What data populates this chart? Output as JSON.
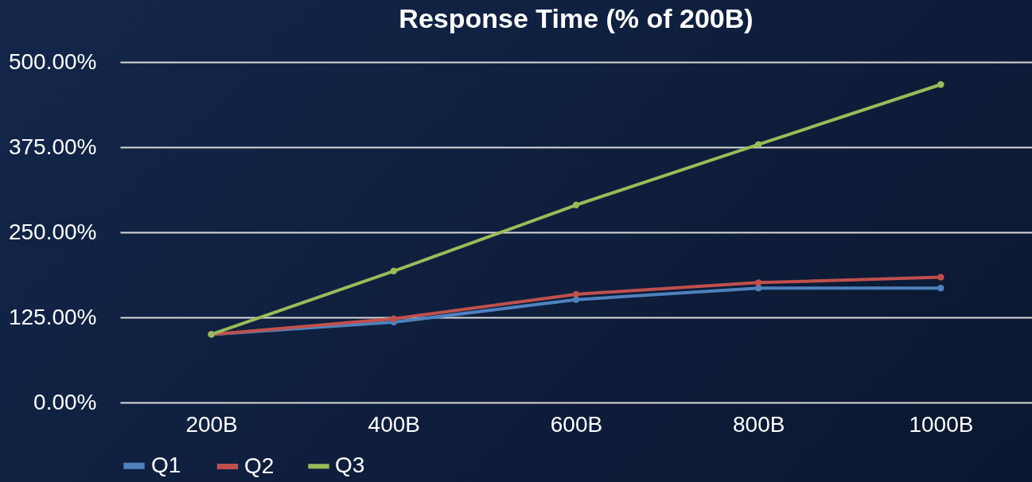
{
  "chart_data": {
    "type": "line",
    "title": "Response Time (% of 200B)",
    "categories": [
      "200B",
      "400B",
      "600B",
      "800B",
      "1000B"
    ],
    "series": [
      {
        "name": "Q1",
        "color": "#4f81bd",
        "values": [
          100,
          118,
          151,
          168,
          168
        ]
      },
      {
        "name": "Q2",
        "color": "#c0504d",
        "values": [
          100,
          123,
          159,
          176,
          184
        ]
      },
      {
        "name": "Q3",
        "color": "#9bbb59",
        "values": [
          100,
          193,
          290,
          379,
          467
        ]
      }
    ],
    "ylim": [
      0,
      500
    ],
    "yticks": [
      {
        "value": 0,
        "label": "0.00%"
      },
      {
        "value": 125,
        "label": "125.00%"
      },
      {
        "value": 250,
        "label": "250.00%"
      },
      {
        "value": 375,
        "label": "375.00%"
      },
      {
        "value": 500,
        "label": "500.00%"
      }
    ],
    "grid": "y",
    "legend": "bottom",
    "marker": "circle",
    "line_style": "solid"
  }
}
